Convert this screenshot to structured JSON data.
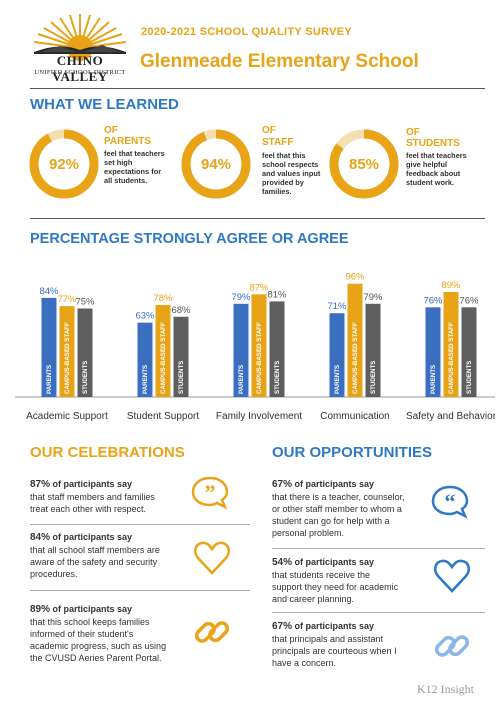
{
  "header": {
    "logo_line1": "CHINO VALLEY",
    "logo_line2": "UNIFIED SCHOOL DISTRICT",
    "survey_title": "2020-2021 SCHOOL QUALITY SURVEY",
    "school_name": "Glenmeade Elementary School"
  },
  "learned": {
    "title": "WHAT WE LEARNED",
    "items": [
      {
        "pct": "92%",
        "value": 92,
        "of": "OF",
        "group": "PARENTS",
        "desc": [
          "feel that teachers",
          "set high",
          "expectations for",
          "all students."
        ]
      },
      {
        "pct": "94%",
        "value": 94,
        "of": "OF",
        "group": "STAFF",
        "desc": [
          "feel that this",
          "school respects",
          "and values input",
          "provided by",
          "families."
        ]
      },
      {
        "pct": "85%",
        "value": 85,
        "of": "OF",
        "group": "STUDENTS",
        "desc": [
          "feel that teachers",
          "give helpful",
          "feedback about",
          "student work."
        ]
      }
    ]
  },
  "chart_section": {
    "title": "PERCENTAGE STRONGLY AGREE OR AGREE"
  },
  "chart_data": {
    "type": "bar",
    "categories": [
      "Academic Support",
      "Student Support",
      "Family Involvement",
      "Communication",
      "Safety and Behavior"
    ],
    "series": [
      {
        "name": "PARENTS",
        "values": [
          84,
          63,
          79,
          71,
          76
        ],
        "color": "#3a6ec1"
      },
      {
        "name": "CAMPUS-BASED STAFF",
        "values": [
          77,
          78,
          87,
          96,
          89
        ],
        "color": "#e8a317"
      },
      {
        "name": "STUDENTS",
        "values": [
          75,
          68,
          81,
          79,
          76
        ],
        "color": "#5e5e5e"
      }
    ],
    "value_labels": [
      [
        "84%",
        "77%",
        "75%"
      ],
      [
        "63%",
        "78%",
        "68%"
      ],
      [
        "79%",
        "87%",
        "81%"
      ],
      [
        "71%",
        "96%",
        "79%"
      ],
      [
        "76%",
        "89%",
        "76%"
      ]
    ],
    "ylim": [
      0,
      100
    ]
  },
  "celebrations": {
    "title": "OUR CELEBRATIONS",
    "color": "#e8a317",
    "items": [
      {
        "pct": "87%",
        "say": "of participants say",
        "lines": [
          "that staff members and families",
          "treat each other with respect."
        ],
        "icon": "quote-icon"
      },
      {
        "pct": "84%",
        "say": "of participants say",
        "lines": [
          "that all school staff members are",
          "aware of the safety and security",
          "procedures."
        ],
        "icon": "heart-icon"
      },
      {
        "pct": "89%",
        "say": "of participants say",
        "lines": [
          "that this school keeps families",
          "informed of their student's",
          "academic progress, such as using",
          "the CVUSD Aeries Parent Portal."
        ],
        "icon": "link-icon"
      }
    ]
  },
  "opportunities": {
    "title": "OUR OPPORTUNITIES",
    "color": "#2f78c4",
    "items": [
      {
        "pct": "67%",
        "say": "of participants say",
        "lines": [
          "that there is a teacher, counselor,",
          "or other staff member to whom a",
          "student can go for help with a",
          "personal problem."
        ],
        "icon": "quote-icon"
      },
      {
        "pct": "54%",
        "say": "of participants say",
        "lines": [
          "that students receive the",
          "support they need for academic",
          "and career planning."
        ],
        "icon": "heart-icon"
      },
      {
        "pct": "67%",
        "say": "of participants say",
        "lines": [
          "that principals and assistant",
          "principals are courteous when I",
          "have a concern."
        ],
        "icon": "link-icon"
      }
    ]
  },
  "footer": {
    "brand": "K12 Insight"
  }
}
